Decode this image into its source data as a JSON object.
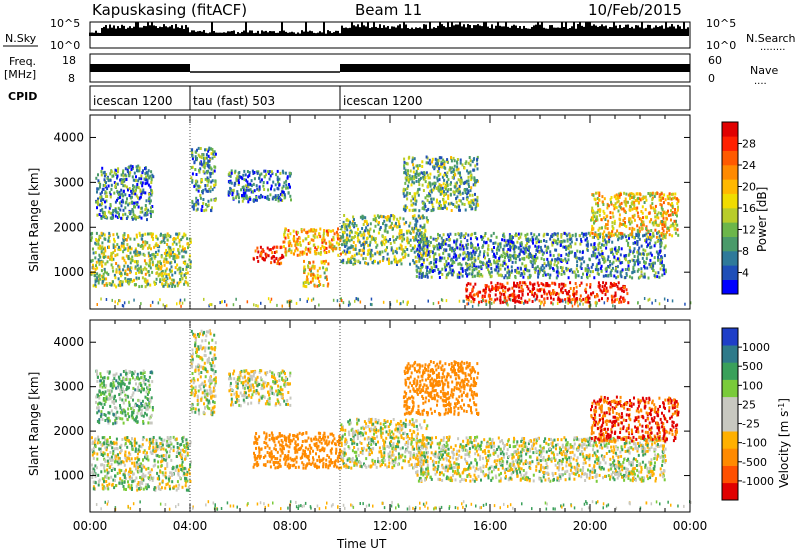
{
  "header": {
    "station": "Kapuskasing (fitACF)",
    "beam": "Beam 11",
    "date": "10/Feb/2015"
  },
  "strip": {
    "nsky_label": "N.Sky",
    "nsky_ticks": [
      "10^5",
      "10^0"
    ],
    "nsearch_label": "N.Search",
    "nsearch_ticks": [
      "10^5",
      "10^0"
    ],
    "freq_label_line1": "Freq.",
    "freq_label_line2": "[MHz]",
    "freq_ticks": [
      "18",
      "8"
    ],
    "nave_label": "Nave",
    "nave_ticks": [
      "60",
      "0"
    ],
    "cpid_label": "CPID",
    "cpid_segments": [
      {
        "label": "icescan 1200",
        "start_hour": 0,
        "end_hour": 4
      },
      {
        "label": "tau (fast) 503",
        "start_hour": 4,
        "end_hour": 10
      },
      {
        "label": "icescan 1200",
        "start_hour": 10,
        "end_hour": 24
      }
    ]
  },
  "chart_data": [
    {
      "type": "heatmap",
      "title": "",
      "xlabel": "Time UT",
      "ylabel": "Slant Range [km]",
      "xlim": [
        0,
        24
      ],
      "ylim": [
        180,
        4500
      ],
      "xticks": [
        "00:00",
        "04:00",
        "08:00",
        "12:00",
        "16:00",
        "20:00",
        "00:00"
      ],
      "yticks": [
        1000,
        2000,
        3000,
        4000
      ],
      "colorbar": {
        "label": "Power [dB]",
        "ticks": [
          4,
          8,
          12,
          16,
          20,
          24,
          28
        ],
        "colors": [
          "#0000ff",
          "#1f4fb8",
          "#2f7a9a",
          "#4a9a6a",
          "#6cb64a",
          "#b8cc2a",
          "#f0dc00",
          "#ffb800",
          "#ff8a00",
          "#ff5a00",
          "#ff2000",
          "#e00000"
        ]
      },
      "regions": [
        {
          "t0": 0.0,
          "t1": 4.0,
          "r0": 700,
          "r1": 1900,
          "value": 14
        },
        {
          "t0": 0.2,
          "t1": 2.5,
          "r0": 2200,
          "r1": 3400,
          "value": 9
        },
        {
          "t0": 4.0,
          "t1": 5.0,
          "r0": 2400,
          "r1": 3800,
          "value": 10
        },
        {
          "t0": 6.5,
          "t1": 7.7,
          "r0": 1200,
          "r1": 1600,
          "value": 28
        },
        {
          "t0": 7.7,
          "t1": 10.0,
          "r0": 1400,
          "r1": 2000,
          "value": 20
        },
        {
          "t0": 8.5,
          "t1": 9.5,
          "r0": 700,
          "r1": 1300,
          "value": 18
        },
        {
          "t0": 10.0,
          "t1": 13.5,
          "r0": 1200,
          "r1": 2300,
          "value": 13
        },
        {
          "t0": 13.0,
          "t1": 23.0,
          "r0": 900,
          "r1": 1900,
          "value": 9
        },
        {
          "t0": 15.0,
          "t1": 21.5,
          "r0": 350,
          "r1": 800,
          "value": 28
        },
        {
          "t0": 12.5,
          "t1": 15.5,
          "r0": 2400,
          "r1": 3600,
          "value": 12
        },
        {
          "t0": 20.0,
          "t1": 23.5,
          "r0": 1800,
          "r1": 2800,
          "value": 18
        },
        {
          "t0": 5.5,
          "t1": 8.0,
          "r0": 2600,
          "r1": 3300,
          "value": 8
        }
      ]
    },
    {
      "type": "heatmap",
      "title": "",
      "xlabel": "Time UT",
      "ylabel": "Slant Range [km]",
      "xlim": [
        0,
        24
      ],
      "ylim": [
        180,
        4500
      ],
      "xticks": [
        "00:00",
        "04:00",
        "08:00",
        "12:00",
        "16:00",
        "20:00",
        "00:00"
      ],
      "yticks": [
        1000,
        2000,
        3000,
        4000
      ],
      "colorbar": {
        "label": "Velocity [m s^-1]",
        "ticks": [
          1000,
          500,
          100,
          25,
          -25,
          -100,
          -500,
          -1000
        ],
        "colors": [
          "#1f3fc8",
          "#2f7a8a",
          "#3aa05a",
          "#7acb3a",
          "#c8c8c0",
          "#c8c8c0",
          "#ffb000",
          "#ff8a00",
          "#ff5000",
          "#e00000"
        ]
      },
      "regions": [
        {
          "t0": 0.0,
          "t1": 4.0,
          "r0": 700,
          "r1": 1900,
          "value": 10
        },
        {
          "t0": 0.2,
          "t1": 2.5,
          "r0": 2200,
          "r1": 3400,
          "value": 50
        },
        {
          "t0": 4.0,
          "t1": 5.0,
          "r0": 2400,
          "r1": 4300,
          "value": 0
        },
        {
          "t0": 6.5,
          "t1": 10.0,
          "r0": 1200,
          "r1": 2000,
          "value": -300
        },
        {
          "t0": 10.0,
          "t1": 13.5,
          "r0": 1200,
          "r1": 2300,
          "value": 0
        },
        {
          "t0": 13.0,
          "t1": 23.0,
          "r0": 900,
          "r1": 1900,
          "value": 0
        },
        {
          "t0": 12.5,
          "t1": 15.5,
          "r0": 2400,
          "r1": 3600,
          "value": -200
        },
        {
          "t0": 20.0,
          "t1": 23.5,
          "r0": 1800,
          "r1": 2800,
          "value": -400
        },
        {
          "t0": 5.5,
          "t1": 8.0,
          "r0": 2600,
          "r1": 3400,
          "value": 0
        }
      ]
    }
  ]
}
